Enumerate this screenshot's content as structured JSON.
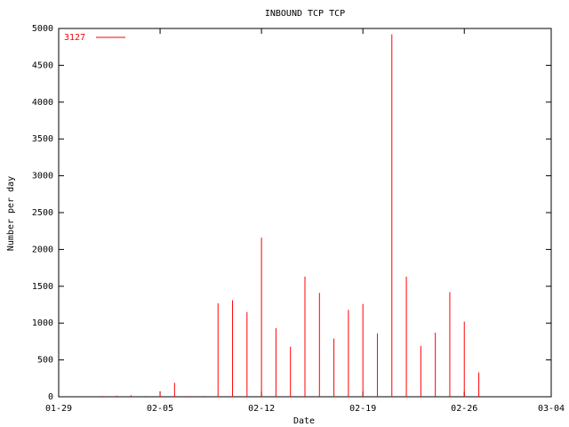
{
  "chart_data": {
    "type": "impulse",
    "title": "INBOUND TCP TCP",
    "xlabel": "Date",
    "ylabel": "Number per day",
    "x": [
      "02-01",
      "02-02",
      "02-03",
      "02-04",
      "02-05",
      "02-06",
      "02-07",
      "02-08",
      "02-09",
      "02-10",
      "02-11",
      "02-12",
      "02-13",
      "02-14",
      "02-15",
      "02-16",
      "02-17",
      "02-18",
      "02-19",
      "02-20",
      "02-21",
      "02-22",
      "02-23",
      "02-24",
      "02-25",
      "02-26",
      "02-27"
    ],
    "series": [
      {
        "name": "3127",
        "color": "#ff0000",
        "values": [
          10,
          15,
          20,
          10,
          60,
          190,
          10,
          10,
          1270,
          1310,
          1150,
          2160,
          930,
          680,
          1630,
          1410,
          790,
          1180,
          1260,
          860,
          4920,
          1630,
          690,
          870,
          1420,
          1020,
          330
        ]
      }
    ],
    "xlim": [
      "01-29",
      "03-04"
    ],
    "xticks": [
      "01-29",
      "02-05",
      "02-12",
      "02-19",
      "02-26",
      "03-04"
    ],
    "ylim": [
      0,
      5000
    ],
    "yticks": [
      0,
      500,
      1000,
      1500,
      2000,
      2500,
      3000,
      3500,
      4000,
      4500,
      5000
    ],
    "legend": "top-left"
  }
}
